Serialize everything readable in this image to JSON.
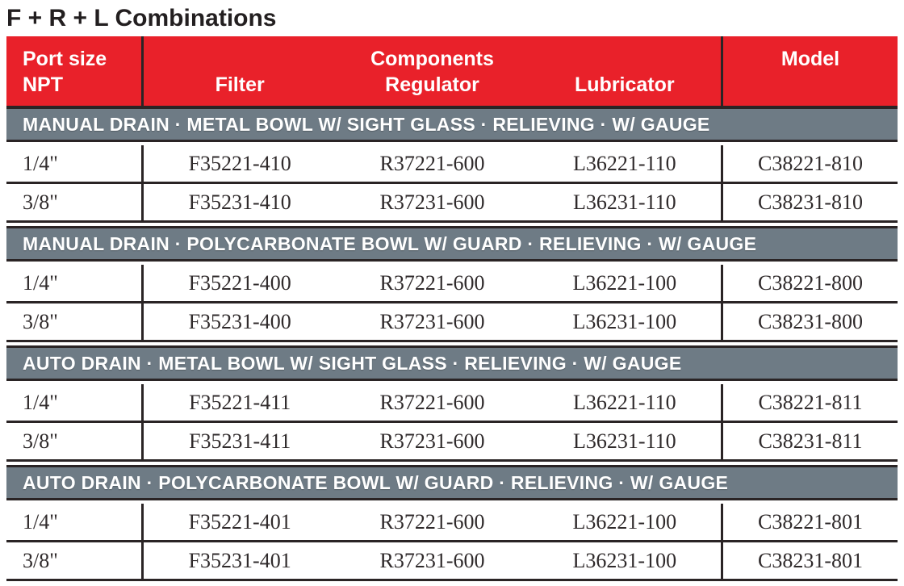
{
  "page_title": "F + R + L Combinations",
  "colors": {
    "header_red": "#e9212a",
    "band_gray": "#6e7b85",
    "border_dark": "#2a2425",
    "header_text": "#ffffff",
    "data_text": "#2f2a2b"
  },
  "table": {
    "header": {
      "port_size_line1": "Port size",
      "port_size_line2": "NPT",
      "components_label": "Components",
      "sub_columns": [
        "Filter",
        "Regulator",
        "Lubricator"
      ],
      "model_label": "Model"
    },
    "sections": [
      {
        "title": "MANUAL DRAIN · METAL BOWL W/ SIGHT GLASS · RELIEVING · W/ GAUGE",
        "rows": [
          {
            "port": "1/4\"",
            "filter": "F35221-410",
            "regulator": "R37221-600",
            "lubricator": "L36221-110",
            "model": "C38221-810"
          },
          {
            "port": "3/8\"",
            "filter": "F35231-410",
            "regulator": "R37231-600",
            "lubricator": "L36231-110",
            "model": "C38231-810"
          }
        ]
      },
      {
        "title": "MANUAL DRAIN · POLYCARBONATE BOWL W/ GUARD · RELIEVING · W/ GAUGE",
        "rows": [
          {
            "port": "1/4\"",
            "filter": "F35221-400",
            "regulator": "R37221-600",
            "lubricator": "L36221-100",
            "model": "C38221-800"
          },
          {
            "port": "3/8\"",
            "filter": "F35231-400",
            "regulator": "R37231-600",
            "lubricator": "L36231-100",
            "model": "C38231-800"
          }
        ]
      },
      {
        "title": "AUTO DRAIN · METAL BOWL W/ SIGHT GLASS · RELIEVING · W/ GAUGE",
        "rows": [
          {
            "port": "1/4\"",
            "filter": "F35221-411",
            "regulator": "R37221-600",
            "lubricator": "L36221-110",
            "model": "C38221-811"
          },
          {
            "port": "3/8\"",
            "filter": "F35231-411",
            "regulator": "R37231-600",
            "lubricator": "L36231-110",
            "model": "C38231-811"
          }
        ]
      },
      {
        "title": "AUTO DRAIN · POLYCARBONATE BOWL W/ GUARD · RELIEVING · W/ GAUGE",
        "rows": [
          {
            "port": "1/4\"",
            "filter": "F35221-401",
            "regulator": "R37221-600",
            "lubricator": "L36221-100",
            "model": "C38221-801"
          },
          {
            "port": "3/8\"",
            "filter": "F35231-401",
            "regulator": "R37231-600",
            "lubricator": "L36231-100",
            "model": "C38231-801"
          }
        ]
      }
    ]
  }
}
